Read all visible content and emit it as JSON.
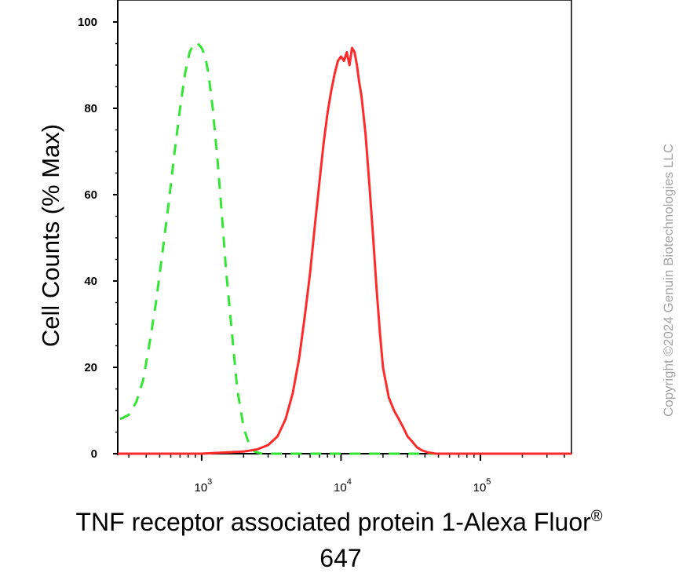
{
  "chart_data": {
    "type": "line",
    "xlabel": "TNF receptor associated protein 1-Alexa Fluor® 647",
    "xlabel_lines": [
      "TNF receptor associated protein 1-Alexa Fluor",
      "647"
    ],
    "xlabel_superscript": "®",
    "ylabel": "Cell Counts (% Max)",
    "x_scale": "log",
    "xlim": [
      250,
      450000
    ],
    "ylim": [
      0,
      100
    ],
    "x_ticks": [
      {
        "value": 1000,
        "base": "10",
        "exp": "3"
      },
      {
        "value": 10000,
        "base": "10",
        "exp": "4"
      },
      {
        "value": 100000,
        "base": "10",
        "exp": "5"
      }
    ],
    "y_ticks": [
      0,
      20,
      40,
      60,
      80,
      100
    ],
    "grid": false,
    "series": [
      {
        "style": "dashed",
        "color": "#33e633",
        "x": [
          260,
          300,
          340,
          380,
          420,
          470,
          520,
          580,
          640,
          700,
          760,
          820,
          880,
          940,
          1000,
          1060,
          1120,
          1200,
          1300,
          1400,
          1500,
          1650,
          1800,
          2000,
          2200,
          2400,
          2700,
          3200,
          5000,
          20000,
          100000,
          400000
        ],
        "y": [
          8,
          9,
          12,
          17,
          25,
          35,
          46,
          58,
          70,
          80,
          88,
          93,
          95,
          95,
          94,
          92,
          88,
          80,
          68,
          55,
          42,
          28,
          15,
          6,
          2,
          0.5,
          0,
          0,
          0,
          0,
          0,
          0
        ]
      },
      {
        "style": "solid",
        "color": "#ff2a2a",
        "x": [
          250,
          1000,
          1500,
          2000,
          2500,
          3000,
          3500,
          4000,
          4500,
          5000,
          5500,
          6000,
          6500,
          7000,
          7500,
          8000,
          8500,
          9000,
          9500,
          10000,
          10500,
          11000,
          11500,
          12000,
          12500,
          13000,
          13500,
          14000,
          15000,
          16000,
          17000,
          18000,
          19000,
          20000,
          22000,
          24000,
          26000,
          28000,
          30000,
          32000,
          35000,
          38000,
          42000,
          48000,
          60000,
          100000,
          450000
        ],
        "y": [
          0,
          0,
          0.3,
          0.5,
          1,
          2,
          4,
          8,
          14,
          22,
          32,
          42,
          53,
          63,
          72,
          79,
          84,
          88,
          91,
          92,
          91,
          93,
          90,
          94,
          93,
          90,
          86,
          83,
          74,
          62,
          50,
          38,
          28,
          20,
          13,
          10,
          8,
          6,
          4,
          3,
          1.5,
          0.8,
          0.3,
          0,
          0,
          0,
          0
        ]
      }
    ]
  },
  "watermark": "Copyright ©2024 Genuin Biotechnologies LLC"
}
